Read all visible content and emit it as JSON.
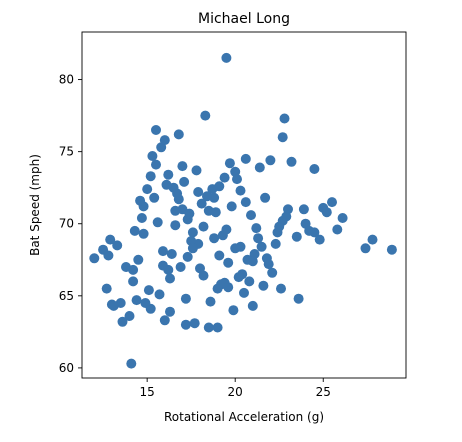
{
  "chart_data": {
    "type": "scatter",
    "title": "Michael Long",
    "xlabel": "Rotational Acceleration (g)",
    "ylabel": "Bat Speed (mph)",
    "xlim": [
      11.3,
      29.7
    ],
    "ylim": [
      59.3,
      83.3
    ],
    "xticks": [
      15,
      20,
      25
    ],
    "yticks": [
      60,
      65,
      70,
      75,
      80
    ],
    "grid": false,
    "legend": "none",
    "point_color": "#3a75ae",
    "series": [
      {
        "x": [
          19.5,
          14.1,
          12.0,
          12.8,
          13.3,
          12.7,
          13.0,
          12.5,
          13.5,
          14.0,
          14.2,
          14.5,
          14.3,
          14.7,
          14.8,
          15.0,
          15.2,
          15.5,
          15.3,
          15.8,
          16.2,
          16.5,
          16.8,
          17.0,
          17.3,
          17.6,
          17.9,
          18.2,
          18.5,
          18.8,
          19.1,
          19.4,
          19.7,
          20.0,
          20.3,
          20.6,
          20.9,
          21.2,
          21.5,
          21.8,
          22.1,
          22.4,
          22.7,
          23.0,
          23.5,
          24.0,
          24.5,
          25.0,
          25.5,
          26.1,
          27.4,
          27.8,
          28.9,
          22.8,
          24.5,
          18.3,
          16.8,
          15.5,
          15.2,
          17.2,
          18.6,
          21.6,
          19.0,
          21.0,
          16.0,
          16.3,
          17.7,
          19.2,
          20.4,
          16.7,
          17.1,
          17.8,
          18.1,
          18.9,
          19.3,
          17.5,
          16.4,
          15.9,
          18.0,
          19.6,
          16.6,
          17.4,
          18.4,
          19.8,
          15.6,
          16.1,
          17.0,
          18.7,
          20.1,
          14.6,
          13.8,
          20.6,
          21.4,
          22.0,
          23.2,
          22.5,
          21.9,
          20.8,
          20.5,
          19.9,
          22.6,
          23.6,
          24.2,
          25.2,
          25.8,
          24.8,
          23.9,
          22.3,
          21.1,
          20.2,
          19.0,
          21.7,
          22.9,
          21.3,
          20.7,
          19.4,
          18.2,
          17.3,
          16.2,
          15.1,
          14.4,
          13.6,
          14.9,
          15.7,
          16.9,
          17.6,
          18.8,
          19.5,
          20.3,
          21.0,
          15.4,
          16.6,
          17.9,
          14.2,
          13.1,
          12.9,
          14.8,
          15.9,
          16.3,
          18.5,
          19.1,
          20.0,
          19.6,
          22.7,
          17.2,
          16.0
        ],
        "y": [
          81.5,
          60.3,
          67.6,
          67.8,
          68.5,
          65.5,
          64.4,
          68.2,
          64.5,
          63.6,
          66.0,
          67.5,
          69.5,
          70.4,
          71.2,
          72.4,
          73.3,
          74.1,
          74.7,
          75.3,
          73.4,
          72.5,
          71.7,
          71.0,
          70.3,
          69.4,
          68.6,
          69.8,
          70.9,
          71.8,
          72.6,
          73.2,
          74.2,
          73.6,
          72.3,
          71.5,
          70.6,
          69.7,
          68.4,
          67.6,
          66.6,
          69.4,
          70.2,
          71.0,
          69.1,
          70.0,
          69.4,
          71.1,
          71.5,
          70.4,
          68.3,
          68.9,
          68.2,
          77.3,
          73.8,
          77.5,
          76.2,
          76.5,
          64.1,
          64.8,
          64.6,
          65.7,
          62.8,
          64.3,
          63.3,
          63.9,
          63.1,
          65.8,
          66.5,
          72.1,
          72.9,
          73.7,
          71.4,
          70.8,
          69.2,
          68.8,
          67.9,
          68.1,
          66.9,
          67.3,
          69.9,
          70.7,
          71.9,
          71.2,
          70.1,
          72.7,
          74.0,
          72.4,
          73.1,
          71.6,
          67.0,
          74.5,
          73.9,
          74.4,
          74.3,
          69.8,
          67.2,
          66.0,
          65.2,
          64.0,
          65.5,
          64.8,
          69.5,
          70.8,
          69.6,
          68.9,
          71.0,
          68.6,
          67.9,
          66.3,
          65.5,
          71.8,
          70.5,
          69.0,
          67.5,
          65.9,
          66.4,
          67.7,
          66.8,
          65.4,
          64.7,
          63.2,
          64.5,
          65.1,
          67.0,
          68.3,
          69.0,
          69.6,
          68.4,
          67.4,
          71.8,
          70.9,
          72.2,
          66.8,
          64.3,
          68.9,
          69.3,
          67.1,
          66.2,
          62.8,
          67.8,
          68.3,
          65.6,
          76.0,
          63.0,
          75.8
        ]
      }
    ]
  }
}
